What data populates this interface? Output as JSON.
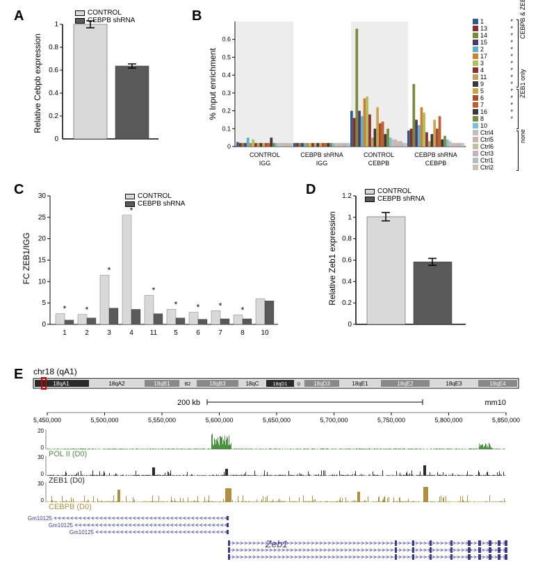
{
  "panelA": {
    "label": "A",
    "ylabel": "Relative Cebpb expression",
    "categories": [
      "CONTROL",
      "CEBPB shRNA"
    ],
    "values": [
      1.0,
      0.64
    ],
    "errors": [
      0.03,
      0.02
    ],
    "colors": [
      "#d9d9d9",
      "#595959"
    ],
    "ytick_step": 0.2,
    "ymax": 1.0
  },
  "panelB": {
    "label": "B",
    "ylabel": "% Input enrichment",
    "groups": [
      "CONTROL IGG",
      "CEBPB shRNA IGG",
      "CONTROL CEBPB",
      "CEBPB shRNA CEBPB"
    ],
    "series_groups": {
      "group1": {
        "label": "CEBPB & ZEB1",
        "items": [
          "1",
          "13",
          "14",
          "15",
          "2",
          "17",
          "3",
          "4",
          "11",
          "9"
        ],
        "stars": [
          "*",
          "*",
          "*",
          "*",
          "*",
          "*",
          "*",
          "*",
          "*",
          "*"
        ]
      },
      "group2": {
        "label": "ZEB1 only",
        "items": [
          "5",
          "6",
          "7",
          "16",
          "8",
          "10"
        ],
        "stars": [
          "*",
          "*",
          "*",
          "*",
          "*",
          ""
        ]
      },
      "group3": {
        "label": "none",
        "items": [
          "Ctrl4",
          "Ctrl5",
          "Ctrl6",
          "Ctrl3",
          "Ctrl1",
          "Ctrl2"
        ],
        "stars": [
          "",
          "",
          "",
          "",
          "",
          ""
        ]
      }
    },
    "colors": {
      "1": "#2e5a8c",
      "13": "#8a2c2c",
      "14": "#7a8a3a",
      "15": "#4a3a6a",
      "2": "#5ab0d0",
      "17": "#d08030",
      "3": "#b0c060",
      "4": "#8a3030",
      "11": "#c0a060",
      "9": "#3a3a3a",
      "5": "#d0a050",
      "6": "#a05030",
      "7": "#c06030",
      "16": "#3a3a3a",
      "8": "#7a8a40",
      "10": "#80c0d0",
      "Ctrl4": "#c0c0c0",
      "Ctrl5": "#d0b0b0",
      "Ctrl6": "#c0c0a0",
      "Ctrl3": "#c0b0c0",
      "Ctrl1": "#b0c0c0",
      "Ctrl2": "#d0c0b0"
    },
    "yticks": [
      0,
      0.1,
      0.2,
      0.3,
      0.4,
      0.5,
      0.6
    ],
    "data": {
      "CONTROL IGG": [
        0.025,
        0.02,
        0.02,
        0.02,
        0.05,
        0.02,
        0.04,
        0.02,
        0.02,
        0.02,
        0.02,
        0.02,
        0.02,
        0.05,
        0.02,
        0.02,
        0.02,
        0.02,
        0.02,
        0.02,
        0.02,
        0.02
      ],
      "CEBPB shRNA IGG": [
        0.02,
        0.02,
        0.02,
        0.02,
        0.02,
        0.02,
        0.02,
        0.02,
        0.02,
        0.02,
        0.02,
        0.02,
        0.02,
        0.02,
        0.02,
        0.02,
        0.02,
        0.02,
        0.02,
        0.02,
        0.02,
        0.02
      ],
      "CONTROL CEBPB": [
        0.2,
        0.16,
        0.66,
        0.2,
        0.17,
        0.27,
        0.28,
        0.18,
        0.05,
        0.1,
        0.22,
        0.13,
        0.14,
        0.07,
        0.1,
        0.05,
        0.04,
        0.04,
        0.03,
        0.03,
        0.02,
        0.02
      ],
      "CEBPB shRNA CEBPB": [
        0.09,
        0.1,
        0.35,
        0.15,
        0.12,
        0.22,
        0.19,
        0.08,
        0.03,
        0.07,
        0.15,
        0.1,
        0.17,
        0.04,
        0.06,
        0.04,
        0.03,
        0.02,
        0.02,
        0.02,
        0.02,
        0.02
      ]
    }
  },
  "panelC": {
    "label": "C",
    "ylabel": "FC ZEB1/IGG",
    "xcategories": [
      "1",
      "2",
      "3",
      "4",
      "11",
      "5",
      "6",
      "7",
      "8",
      "10"
    ],
    "control_values": [
      2.5,
      2.3,
      11.5,
      25.5,
      6.8,
      3.5,
      2.8,
      3.2,
      2.2,
      6.0
    ],
    "shrna_values": [
      1.0,
      1.5,
      3.8,
      3.5,
      2.5,
      1.5,
      1.2,
      1.3,
      1.3,
      5.5
    ],
    "stars": [
      "*",
      "*",
      "*",
      "*",
      "*",
      "*",
      "*",
      "*",
      "*",
      ""
    ],
    "colors": [
      "#d9d9d9",
      "#595959"
    ],
    "legend": [
      "CONTROL",
      "CEBPB shRNA"
    ],
    "yticks": [
      0,
      5,
      10,
      15,
      20,
      25,
      30
    ]
  },
  "panelD": {
    "label": "D",
    "ylabel": "Relative Zeb1 expression",
    "categories": [
      "CONTROL",
      "CEBPB shRNA"
    ],
    "values": [
      1.0,
      0.58
    ],
    "errors": [
      0.04,
      0.03
    ],
    "colors": [
      "#d9d9d9",
      "#595959"
    ],
    "yticks": [
      0,
      0.2,
      0.4,
      0.6,
      0.8,
      1,
      1.2
    ]
  },
  "panelE": {
    "label": "E",
    "title": "chr18 (qA1)",
    "scale_label": "200 kb",
    "assembly": "mm10",
    "bands": [
      "18qA1",
      "18qA2",
      "18qB1",
      "B2",
      "18qB3",
      "18qC",
      "18qD1",
      "D",
      "18qD3",
      "18qE1",
      "18qE2",
      "18qE3",
      "18qE4"
    ],
    "positions": [
      "5,450,000",
      "5,500,000",
      "5,550,000",
      "5,600,000",
      "5,650,000",
      "5,700,000",
      "5,750,000",
      "5,800,000",
      "5,850,000"
    ],
    "tracks": [
      {
        "name": "POL II (D0)",
        "color": "#4a9040",
        "max": 20
      },
      {
        "name": "ZEB1 (D0)",
        "color": "#2a2a2a",
        "max": 30
      },
      {
        "name": "CEBPB (D0)",
        "color": "#b09040",
        "max": 30
      }
    ],
    "gene": "Zeb1",
    "transcripts": [
      "Gm10125",
      "Gm10125",
      "Gm10125"
    ]
  }
}
